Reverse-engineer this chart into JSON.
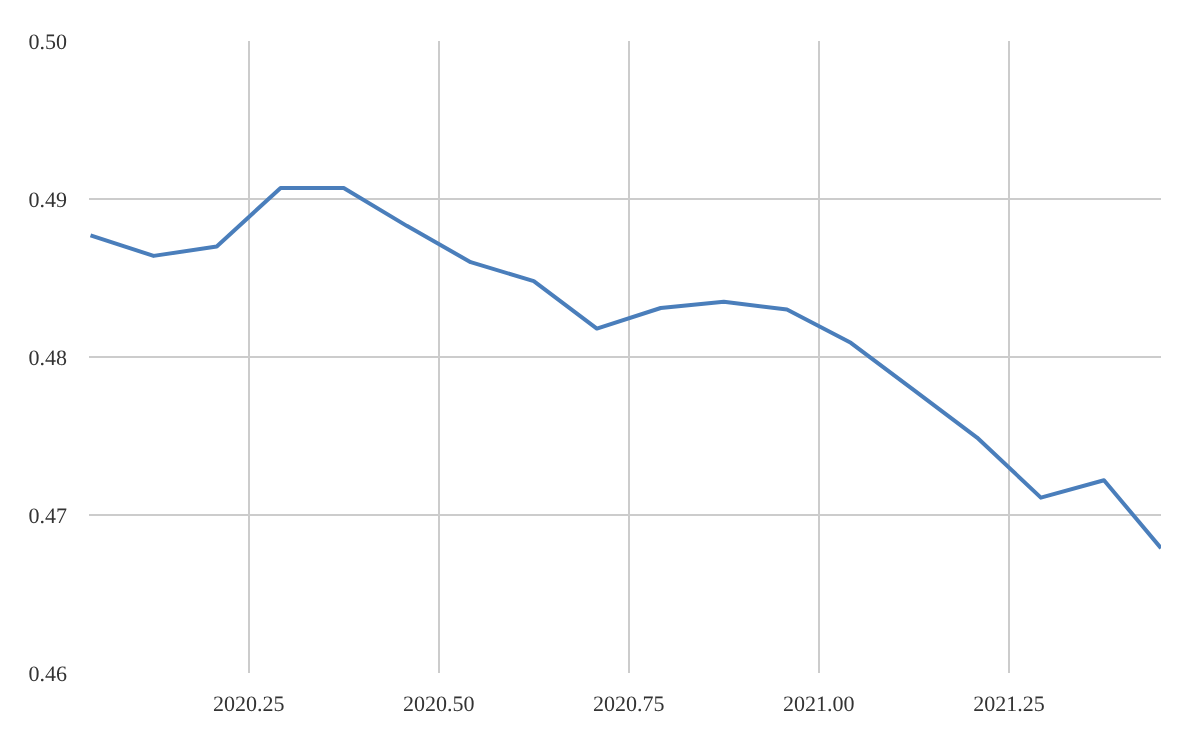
{
  "chart_data": {
    "type": "line",
    "x": [
      2020.042,
      2020.125,
      2020.208,
      2020.292,
      2020.375,
      2020.458,
      2020.542,
      2020.625,
      2020.708,
      2020.792,
      2020.875,
      2020.958,
      2021.042,
      2021.125,
      2021.208,
      2021.292,
      2021.375,
      2021.45
    ],
    "series": [
      {
        "color": "#4a7ebb",
        "values": [
          0.4877,
          0.4864,
          0.487,
          0.4907,
          0.4907,
          0.4883,
          0.486,
          0.4848,
          0.4818,
          0.4831,
          0.4835,
          0.483,
          0.4809,
          0.4779,
          0.4749,
          0.4711,
          0.4722,
          0.4679
        ]
      }
    ],
    "xlim": [
      2020.04,
      2021.45
    ],
    "xticks": [
      {
        "value": 2020.25,
        "label": "2020.25"
      },
      {
        "value": 2020.5,
        "label": "2020.50"
      },
      {
        "value": 2020.75,
        "label": "2020.75"
      },
      {
        "value": 2021.0,
        "label": "2021.00"
      },
      {
        "value": 2021.25,
        "label": "2021.25"
      }
    ],
    "ylim": [
      0.46,
      0.5
    ],
    "yticks": [
      {
        "value": 0.46,
        "label": "0.46"
      },
      {
        "value": 0.47,
        "label": "0.47"
      },
      {
        "value": 0.48,
        "label": "0.48"
      },
      {
        "value": 0.49,
        "label": "0.49"
      },
      {
        "value": 0.5,
        "label": "0.50"
      }
    ],
    "grid": true,
    "marker": "none",
    "line_style": "solid"
  }
}
